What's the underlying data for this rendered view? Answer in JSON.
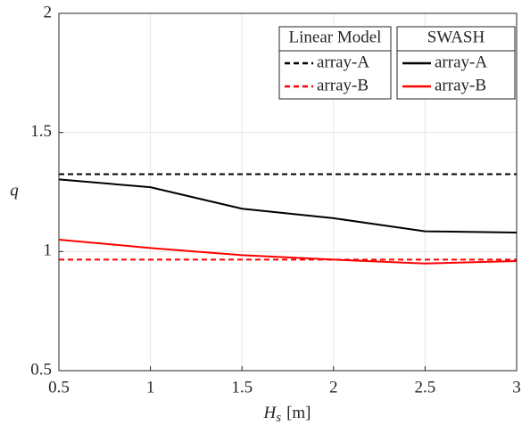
{
  "chart_data": {
    "type": "line",
    "x": [
      0.5,
      1,
      1.5,
      2,
      2.5,
      3
    ],
    "xlim": [
      0.5,
      3
    ],
    "ylim": [
      0.5,
      2
    ],
    "xticks": [
      0.5,
      1,
      1.5,
      2,
      2.5,
      3
    ],
    "yticks": [
      0.5,
      1,
      1.5,
      2
    ],
    "grid": true,
    "xlabel": {
      "symbol": "H",
      "subscript": "s",
      "unit": "[m]"
    },
    "ylabel": "q",
    "groups": [
      {
        "name": "Linear Model",
        "series": [
          {
            "name": "array-A",
            "color": "#000000",
            "dashed": true,
            "values": [
              1.325,
              1.325,
              1.325,
              1.325,
              1.325,
              1.325
            ]
          },
          {
            "name": "array-B",
            "color": "#ff0000",
            "dashed": true,
            "values": [
              0.966,
              0.966,
              0.966,
              0.966,
              0.966,
              0.966
            ]
          }
        ]
      },
      {
        "name": "SWASH",
        "series": [
          {
            "name": "array-A",
            "color": "#000000",
            "dashed": false,
            "values": [
              1.303,
              1.27,
              1.18,
              1.14,
              1.085,
              1.08
            ]
          },
          {
            "name": "array-B",
            "color": "#ff0000",
            "dashed": false,
            "values": [
              1.05,
              1.015,
              0.985,
              0.966,
              0.95,
              0.96
            ]
          }
        ]
      }
    ]
  }
}
